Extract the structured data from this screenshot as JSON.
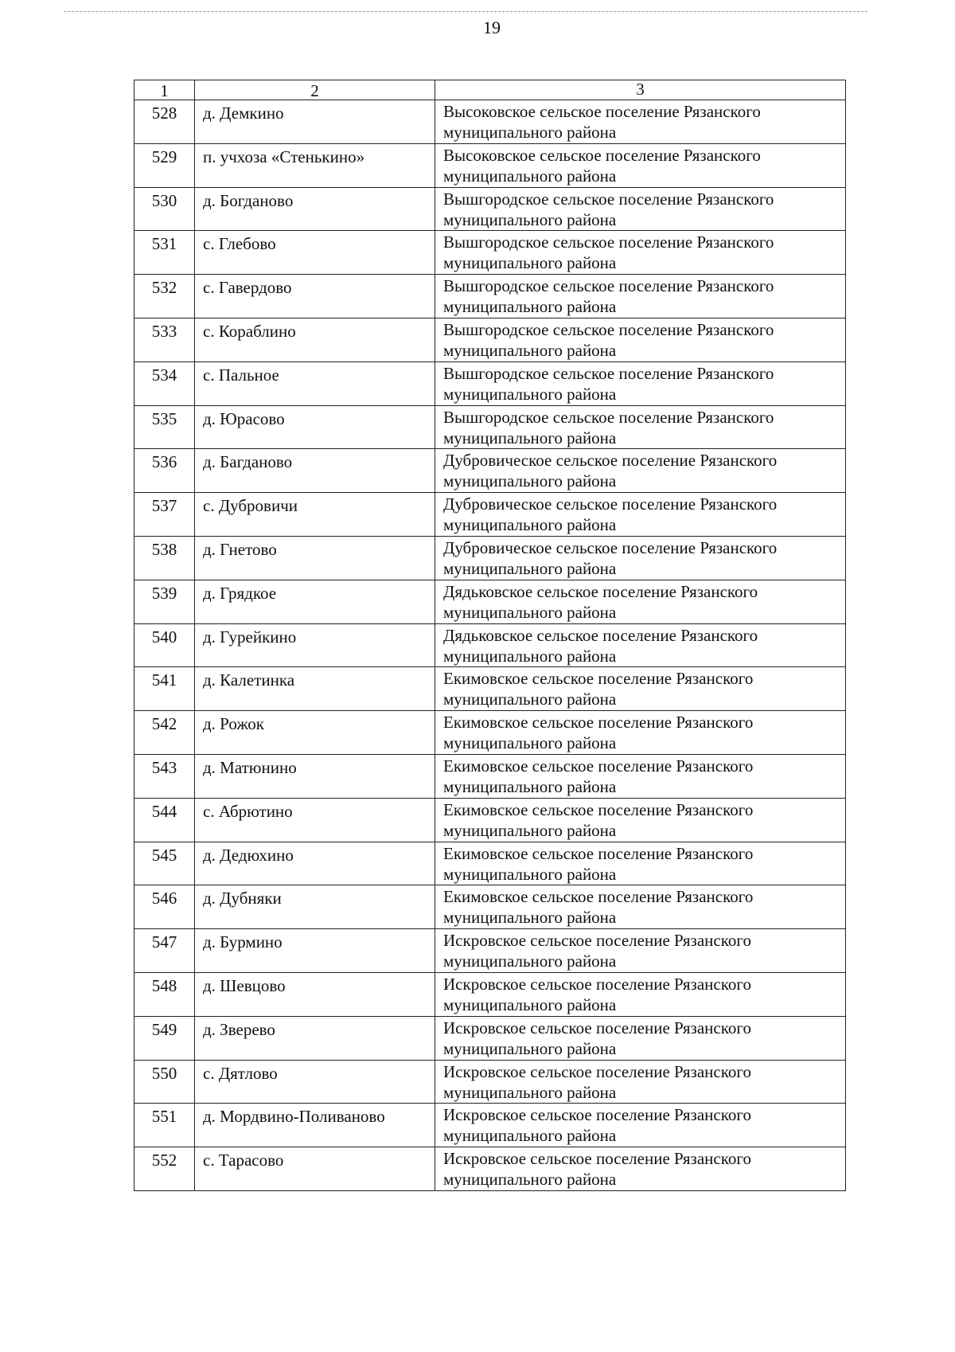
{
  "page_number": "19",
  "table": {
    "headers": [
      "1",
      "2",
      "3"
    ],
    "rows": [
      {
        "num": "528",
        "locality": "д. Демкино",
        "settlement": "Высоковское сельское поселение Рязанского муниципального района"
      },
      {
        "num": "529",
        "locality": "п. учхоза «Стенькино»",
        "settlement": "Высоковское сельское поселение Рязанского муниципального района"
      },
      {
        "num": "530",
        "locality": "д. Богданово",
        "settlement": "Вышгородское сельское поселение Рязанского муниципального района"
      },
      {
        "num": "531",
        "locality": "с. Глебово",
        "settlement": "Вышгородское сельское поселение Рязанского муниципального района"
      },
      {
        "num": "532",
        "locality": "с. Гавердово",
        "settlement": "Вышгородское сельское поселение Рязанского муниципального района"
      },
      {
        "num": "533",
        "locality": "с. Кораблино",
        "settlement": "Вышгородское сельское поселение Рязанского муниципального района"
      },
      {
        "num": "534",
        "locality": "с. Пальное",
        "settlement": "Вышгородское сельское поселение Рязанского муниципального района"
      },
      {
        "num": "535",
        "locality": "д. Юрасово",
        "settlement": "Вышгородское сельское поселение Рязанского муниципального района"
      },
      {
        "num": "536",
        "locality": "д. Багданово",
        "settlement": "Дубровическое сельское поселение Рязанского муниципального района"
      },
      {
        "num": "537",
        "locality": "с. Дубровичи",
        "settlement": "Дубровическое сельское поселение Рязанского муниципального района"
      },
      {
        "num": "538",
        "locality": "д. Гнетово",
        "settlement": "Дубровическое сельское поселение Рязанского муниципального района"
      },
      {
        "num": "539",
        "locality": "д. Грядкое",
        "settlement": "Дядьковское сельское поселение Рязанского муниципального района"
      },
      {
        "num": "540",
        "locality": "д. Гурейкино",
        "settlement": "Дядьковское сельское поселение Рязанского муниципального района"
      },
      {
        "num": "541",
        "locality": "д. Калетинка",
        "settlement": "Екимовское сельское поселение Рязанского муниципального района"
      },
      {
        "num": "542",
        "locality": "д. Рожок",
        "settlement": "Екимовское сельское поселение Рязанского муниципального района"
      },
      {
        "num": "543",
        "locality": "д. Матюнино",
        "settlement": "Екимовское сельское поселение Рязанского муниципального района"
      },
      {
        "num": "544",
        "locality": "с. Абрютино",
        "settlement": "Екимовское сельское поселение Рязанского муниципального района"
      },
      {
        "num": "545",
        "locality": "д. Дедюхино",
        "settlement": "Екимовское сельское поселение Рязанского муниципального района"
      },
      {
        "num": "546",
        "locality": "д. Дубняки",
        "settlement": "Екимовское сельское поселение Рязанского муниципального района"
      },
      {
        "num": "547",
        "locality": "д. Бурмино",
        "settlement": "Искровское сельское поселение Рязанского муниципального района"
      },
      {
        "num": "548",
        "locality": "д. Шевцово",
        "settlement": "Искровское сельское поселение Рязанского муниципального района"
      },
      {
        "num": "549",
        "locality": "д. Зверево",
        "settlement": "Искровское сельское поселение Рязанского муниципального района"
      },
      {
        "num": "550",
        "locality": "с. Дятлово",
        "settlement": "Искровское сельское поселение Рязанского муниципального района"
      },
      {
        "num": "551",
        "locality": "д. Мордвино-Поливаново",
        "settlement": "Искровское сельское поселение Рязанского муниципального района"
      },
      {
        "num": "552",
        "locality": "с. Тарасово",
        "settlement": "Искровское сельское поселение Рязанского муниципального района"
      }
    ]
  }
}
